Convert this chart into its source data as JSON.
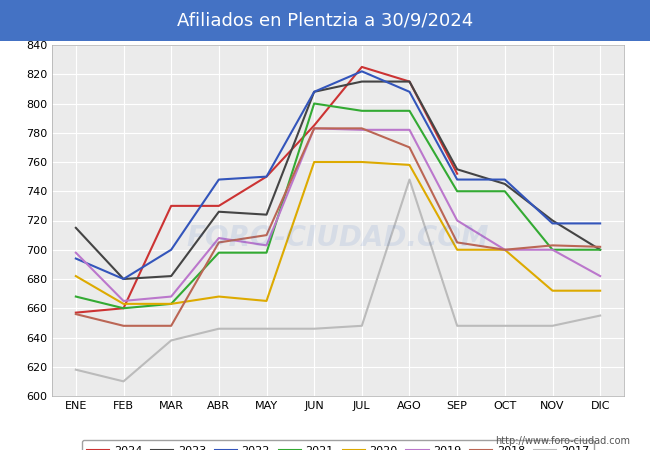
{
  "title": "Afiliados en Plentzia a 30/9/2024",
  "title_bg_color": "#4472c4",
  "title_text_color": "white",
  "ylim": [
    600,
    840
  ],
  "yticks": [
    600,
    620,
    640,
    660,
    680,
    700,
    720,
    740,
    760,
    780,
    800,
    820,
    840
  ],
  "months": [
    "ENE",
    "FEB",
    "MAR",
    "ABR",
    "MAY",
    "JUN",
    "JUL",
    "AGO",
    "SEP",
    "OCT",
    "NOV",
    "DIC"
  ],
  "watermark": "FORO-CIUDAD.COM",
  "url": "http://www.foro-ciudad.com",
  "series": {
    "2024": {
      "color": "#cc3333",
      "data": [
        657,
        660,
        730,
        730,
        750,
        785,
        825,
        815,
        752,
        null,
        null,
        null
      ]
    },
    "2023": {
      "color": "#444444",
      "data": [
        715,
        680,
        682,
        726,
        724,
        808,
        815,
        815,
        755,
        745,
        720,
        700
      ]
    },
    "2022": {
      "color": "#3355bb",
      "data": [
        694,
        680,
        700,
        748,
        750,
        808,
        822,
        808,
        748,
        748,
        718,
        718
      ]
    },
    "2021": {
      "color": "#33aa33",
      "data": [
        668,
        660,
        663,
        698,
        698,
        800,
        795,
        795,
        740,
        740,
        700,
        700
      ]
    },
    "2020": {
      "color": "#ddaa00",
      "data": [
        682,
        663,
        663,
        668,
        665,
        760,
        760,
        758,
        700,
        700,
        672,
        672
      ]
    },
    "2019": {
      "color": "#bb77cc",
      "data": [
        698,
        665,
        668,
        708,
        703,
        783,
        782,
        782,
        720,
        700,
        700,
        682
      ]
    },
    "2018": {
      "color": "#bb6655",
      "data": [
        656,
        648,
        648,
        705,
        710,
        783,
        783,
        770,
        705,
        700,
        703,
        702
      ]
    },
    "2017": {
      "color": "#bbbbbb",
      "data": [
        618,
        610,
        638,
        646,
        646,
        646,
        648,
        748,
        648,
        648,
        648,
        655
      ]
    }
  }
}
